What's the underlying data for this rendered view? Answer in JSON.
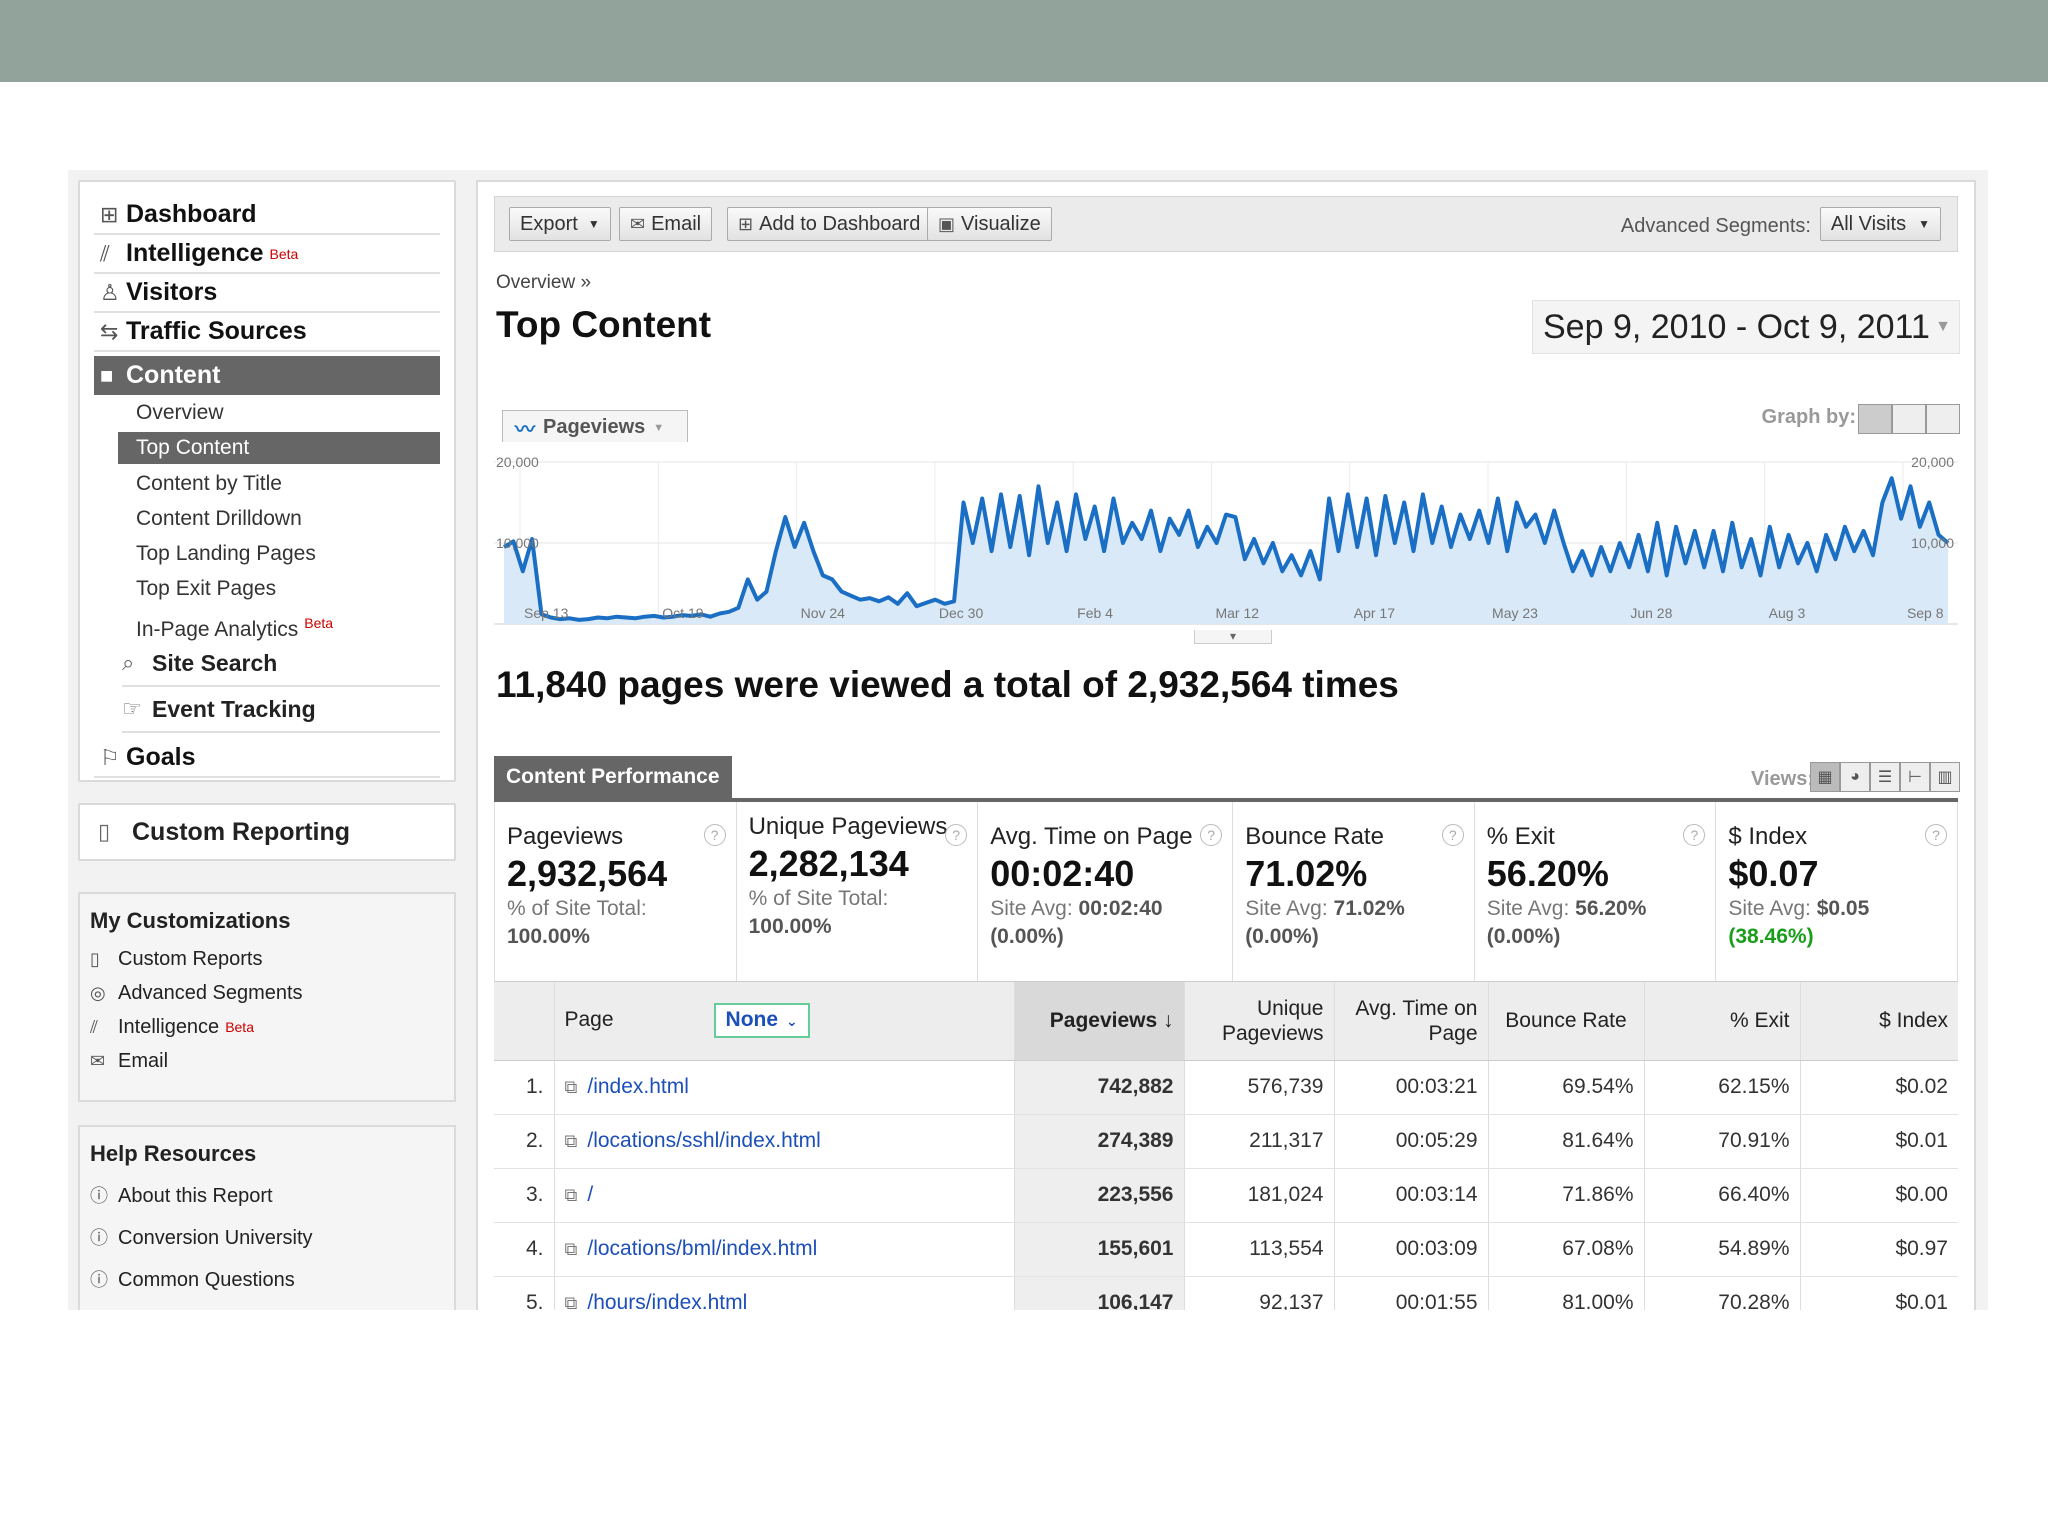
{
  "sidebar": {
    "items": [
      {
        "label": "Dashboard",
        "icon": "grid-icon"
      },
      {
        "label": "Intelligence",
        "beta": "Beta",
        "icon": "chart-icon"
      },
      {
        "label": "Visitors",
        "icon": "person-icon"
      },
      {
        "label": "Traffic Sources",
        "icon": "traffic-icon"
      },
      {
        "label": "Content",
        "icon": "square-icon"
      }
    ],
    "content_sub": [
      "Overview",
      "Top Content",
      "Content by Title",
      "Content Drilldown",
      "Top Landing Pages",
      "Top Exit Pages",
      "In-Page Analytics"
    ],
    "inpage_beta": "Beta",
    "site_search": "Site Search",
    "event_tracking": "Event Tracking",
    "goals": "Goals"
  },
  "custom_reporting": "Custom Reporting",
  "my_customizations": {
    "title": "My Customizations",
    "items": [
      "Custom Reports",
      "Advanced Segments",
      "Intelligence",
      "Email"
    ],
    "intelligence_beta": "Beta"
  },
  "help": {
    "title": "Help Resources",
    "items": [
      "About this Report",
      "Conversion University",
      "Common Questions"
    ]
  },
  "toolbar": {
    "export": "Export",
    "email": "Email",
    "add_dashboard": "Add to Dashboard",
    "visualize": "Visualize",
    "segments_label": "Advanced Segments:",
    "segments_value": "All Visits"
  },
  "breadcrumb": "Overview »",
  "page_title": "Top Content",
  "date_range": "Sep 9, 2010 - Oct 9, 2011",
  "graph": {
    "tab": "Pageviews",
    "graph_by": "Graph by:"
  },
  "chart_data": {
    "type": "area",
    "series": [
      {
        "name": "Pageviews"
      }
    ],
    "ylim": [
      0,
      20000
    ],
    "ytick_labels": [
      "20,000",
      "10,000"
    ],
    "xtick_labels": [
      "Sep 13",
      "Oct 19",
      "Nov 24",
      "Dec 30",
      "Feb 4",
      "Mar 12",
      "Apr 17",
      "May 23",
      "Jun 28",
      "Aug 3",
      "Sep 8"
    ],
    "values": [
      9500,
      10200,
      6500,
      10500,
      1200,
      800,
      600,
      700,
      500,
      600,
      800,
      700,
      900,
      800,
      700,
      900,
      1000,
      800,
      900,
      1100,
      1000,
      1200,
      900,
      1300,
      1500,
      2000,
      5500,
      3000,
      4000,
      9000,
      13200,
      9500,
      12500,
      9000,
      6000,
      5500,
      4000,
      3500,
      3000,
      3200,
      2800,
      3300,
      2500,
      3800,
      2200,
      2600,
      3000,
      2500,
      2800,
      15000,
      10000,
      15500,
      9000,
      16000,
      9500,
      15800,
      8500,
      17000,
      10000,
      15000,
      9000,
      16000,
      10500,
      14500,
      9000,
      15500,
      10000,
      12500,
      10500,
      14000,
      9000,
      13000,
      11000,
      14000,
      9500,
      12000,
      10000,
      13500,
      13200,
      8000,
      10500,
      7500,
      10000,
      6500,
      8500,
      6000,
      9000,
      5500,
      15500,
      9000,
      16000,
      9500,
      15500,
      8500,
      15800,
      10000,
      15000,
      9000,
      16000,
      10000,
      14500,
      9500,
      13500,
      10500,
      14000,
      10000,
      15500,
      9000,
      15000,
      12000,
      13500,
      10000,
      14000,
      10000,
      6500,
      9000,
      6000,
      9500,
      6500,
      10000,
      7000,
      11000,
      6500,
      12500,
      6000,
      12000,
      7500,
      11500,
      7000,
      11500,
      6500,
      12500,
      7000,
      10500,
      6000,
      12000,
      7000,
      11000,
      7500,
      10000,
      6500,
      11000,
      8000,
      12000,
      9000,
      11500,
      8500,
      15000,
      18000,
      13000,
      17000,
      12000,
      15000,
      11000,
      10000
    ]
  },
  "summary": "11,840 pages were viewed a total of 2,932,564 times",
  "content_performance": {
    "tab": "Content Performance",
    "views_label": "Views:"
  },
  "metrics": [
    {
      "name": "Pageviews",
      "value": "2,932,564",
      "foot1": "% of Site Total:",
      "foot2": "100.00%"
    },
    {
      "name": "Unique Pageviews",
      "value": "2,282,134",
      "foot1": "% of Site Total:",
      "foot2": "100.00%"
    },
    {
      "name": "Avg. Time on Page",
      "value": "00:02:40",
      "foot1": "Site Avg:",
      "foot1_val": "00:02:40",
      "foot2": "(0.00%)"
    },
    {
      "name": "Bounce Rate",
      "value": "71.02%",
      "foot1": "Site Avg:",
      "foot1_val": "71.02%",
      "foot2": "(0.00%)"
    },
    {
      "name": "% Exit",
      "value": "56.20%",
      "foot1": "Site Avg:",
      "foot1_val": "56.20%",
      "foot2": "(0.00%)"
    },
    {
      "name": "$ Index",
      "value": "$0.07",
      "foot1": "Site Avg:",
      "foot1_val": "$0.05",
      "foot2": "(38.46%)"
    }
  ],
  "table": {
    "headers": {
      "page": "Page",
      "filter": "None",
      "pageviews": "Pageviews ↓",
      "unique": "Unique Pageviews",
      "avg_time": "Avg. Time on Page",
      "bounce": "Bounce Rate",
      "exit": "% Exit",
      "index": "$ Index"
    },
    "rows": [
      {
        "n": "1.",
        "page": "/index.html",
        "pv": "742,882",
        "upv": "576,739",
        "time": "00:03:21",
        "bounce": "69.54%",
        "exit": "62.15%",
        "index": "$0.02"
      },
      {
        "n": "2.",
        "page": "/locations/sshl/index.html",
        "pv": "274,389",
        "upv": "211,317",
        "time": "00:05:29",
        "bounce": "81.64%",
        "exit": "70.91%",
        "index": "$0.01"
      },
      {
        "n": "3.",
        "page": "/",
        "pv": "223,556",
        "upv": "181,024",
        "time": "00:03:14",
        "bounce": "71.86%",
        "exit": "66.40%",
        "index": "$0.00"
      },
      {
        "n": "4.",
        "page": "/locations/bml/index.html",
        "pv": "155,601",
        "upv": "113,554",
        "time": "00:03:09",
        "bounce": "67.08%",
        "exit": "54.89%",
        "index": "$0.97"
      },
      {
        "n": "5.",
        "page": "/hours/index.html",
        "pv": "106,147",
        "upv": "92,137",
        "time": "00:01:55",
        "bounce": "81.00%",
        "exit": "70.28%",
        "index": "$0.01"
      }
    ]
  }
}
